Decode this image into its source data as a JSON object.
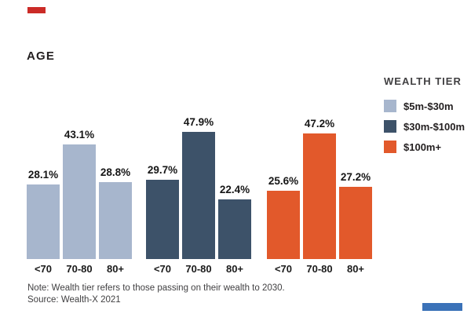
{
  "page": {
    "title": "AGE",
    "note": "Note: Wealth tier refers to those passing on their wealth to 2030.",
    "source": "Source: Wealth-X 2021"
  },
  "legend": {
    "title": "WEALTH TIER",
    "items": [
      {
        "label": "$5m-$30m",
        "color": "#a7b6cd"
      },
      {
        "label": "$30m-$100m",
        "color": "#3d5269"
      },
      {
        "label": "$100m+",
        "color": "#e2592b"
      }
    ]
  },
  "accents": {
    "top_left_dash_color": "#cb2b27",
    "bottom_right_dash_color": "#3b72b8"
  },
  "chart_data": {
    "type": "bar",
    "title": "AGE",
    "categories": [
      "<70",
      "70-80",
      "80+"
    ],
    "unit": "percent",
    "series": [
      {
        "name": "$5m-$30m",
        "color": "#a7b6cd",
        "values": [
          28.1,
          43.1,
          28.8
        ],
        "labels": [
          "28.1%",
          "43.1%",
          "28.8%"
        ]
      },
      {
        "name": "$30m-$100m",
        "color": "#3d5269",
        "values": [
          29.7,
          47.9,
          22.4
        ],
        "labels": [
          "29.7%",
          "47.9%",
          "22.4%"
        ]
      },
      {
        "name": "$100m+",
        "color": "#e2592b",
        "values": [
          25.6,
          47.2,
          27.2
        ],
        "labels": [
          "25.6%",
          "47.2%",
          "27.2%"
        ]
      }
    ],
    "ylim": [
      0,
      50
    ],
    "grid": false,
    "value_labels": "above bars",
    "legend_position": "right",
    "note": "Note: Wealth tier refers to those passing on their wealth to 2030.",
    "source": "Source: Wealth-X 2021"
  }
}
